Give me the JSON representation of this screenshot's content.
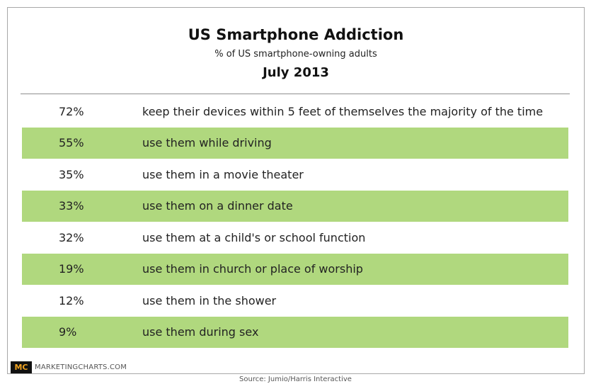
{
  "header": {
    "title": "US Smartphone Addiction",
    "subtitle": "% of US smartphone-owning adults",
    "date": "July 2013"
  },
  "chart_data": {
    "type": "table",
    "title": "US Smartphone Addiction",
    "subtitle": "% of US smartphone-owning adults",
    "period": "July 2013",
    "row_shading_color": "#b0d87e",
    "rows": [
      {
        "pct_label": "72%",
        "value": 72,
        "description": "keep their devices within 5 feet of themselves the majority of the time"
      },
      {
        "pct_label": "55%",
        "value": 55,
        "description": "use them while driving"
      },
      {
        "pct_label": "35%",
        "value": 35,
        "description": "use them in a movie theater"
      },
      {
        "pct_label": "33%",
        "value": 33,
        "description": "use them on a dinner date"
      },
      {
        "pct_label": "32%",
        "value": 32,
        "description": "use them at a child's or school function"
      },
      {
        "pct_label": "19%",
        "value": 19,
        "description": "use them in church or place of worship"
      },
      {
        "pct_label": "12%",
        "value": 12,
        "description": "use them in the shower"
      },
      {
        "pct_label": "9%",
        "value": 9,
        "description": "use them during sex"
      }
    ]
  },
  "footer": {
    "logo_text": "MC",
    "brand": "MARKETINGCHARTS.COM",
    "source": "Source: Jumio/Harris Interactive"
  }
}
